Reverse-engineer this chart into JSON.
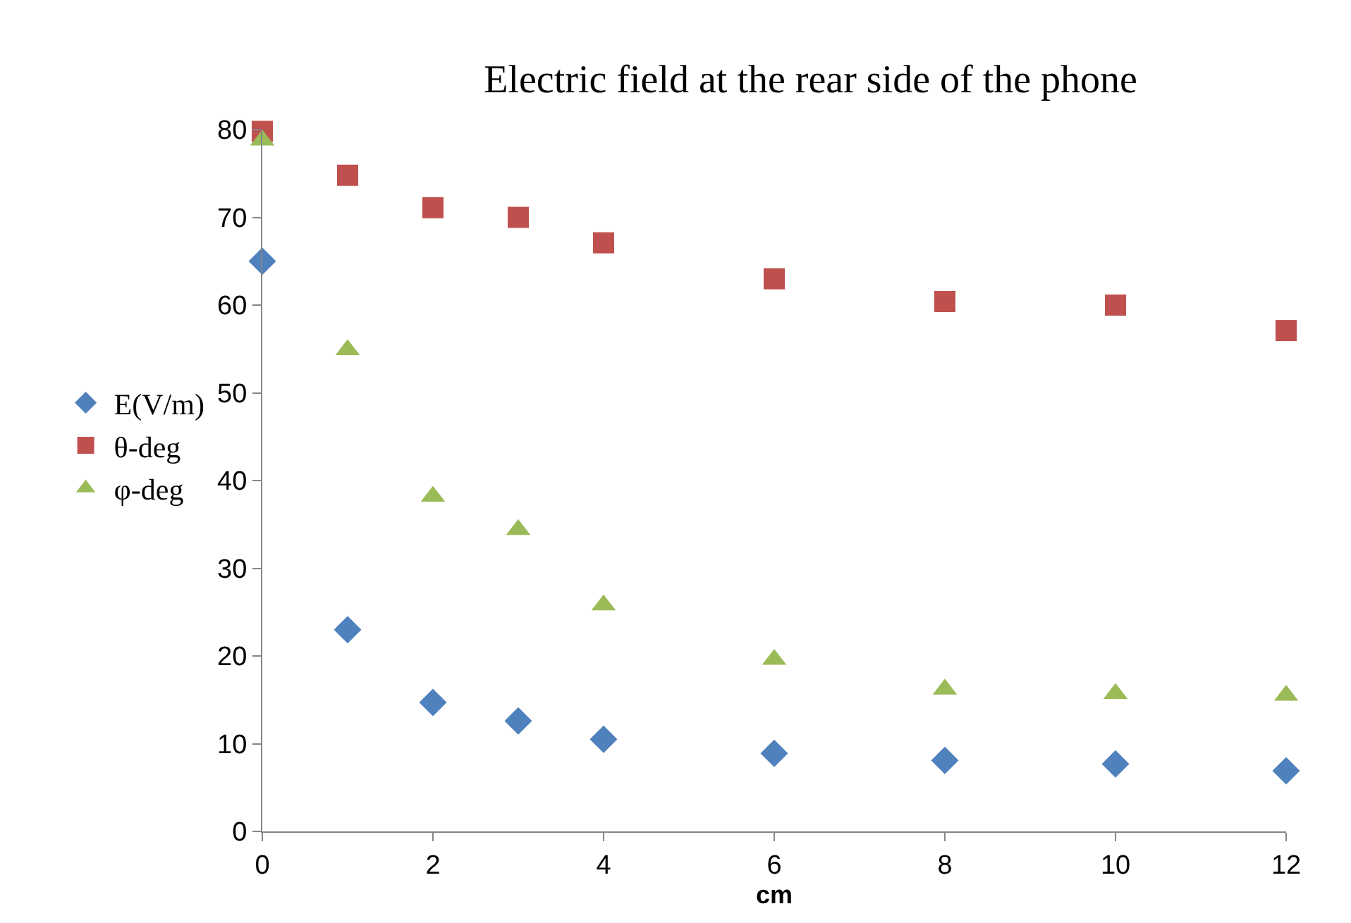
{
  "chart_data": {
    "type": "scatter",
    "title": "Electric field at the rear side of the phone",
    "xlabel": "cm",
    "x": [
      0,
      1,
      2,
      3,
      4,
      6,
      8,
      10,
      12
    ],
    "series": [
      {
        "name": "E(V/m)",
        "color": "#4f81bd",
        "marker": "diamond",
        "values": [
          65,
          23,
          14.7,
          12.6,
          10.5,
          8.9,
          8.1,
          7.7,
          6.9
        ]
      },
      {
        "name": "θ-deg",
        "color": "#c0504d",
        "marker": "square",
        "values": [
          79.8,
          74.8,
          71.1,
          70.0,
          67.1,
          63.0,
          60.4,
          60.0,
          57.1
        ]
      },
      {
        "name": "φ-deg",
        "color": "#9bbb59",
        "marker": "triangle",
        "values": [
          78.8,
          54.9,
          38.2,
          34.4,
          25.8,
          19.6,
          16.2,
          15.7,
          15.5
        ]
      }
    ],
    "xlim": [
      0,
      12
    ],
    "xticks": [
      0,
      2,
      4,
      6,
      8,
      10,
      12
    ],
    "ylim": [
      0,
      80
    ],
    "yticks": [
      0,
      10,
      20,
      30,
      40,
      50,
      60,
      70,
      80
    ],
    "legend": "left"
  }
}
